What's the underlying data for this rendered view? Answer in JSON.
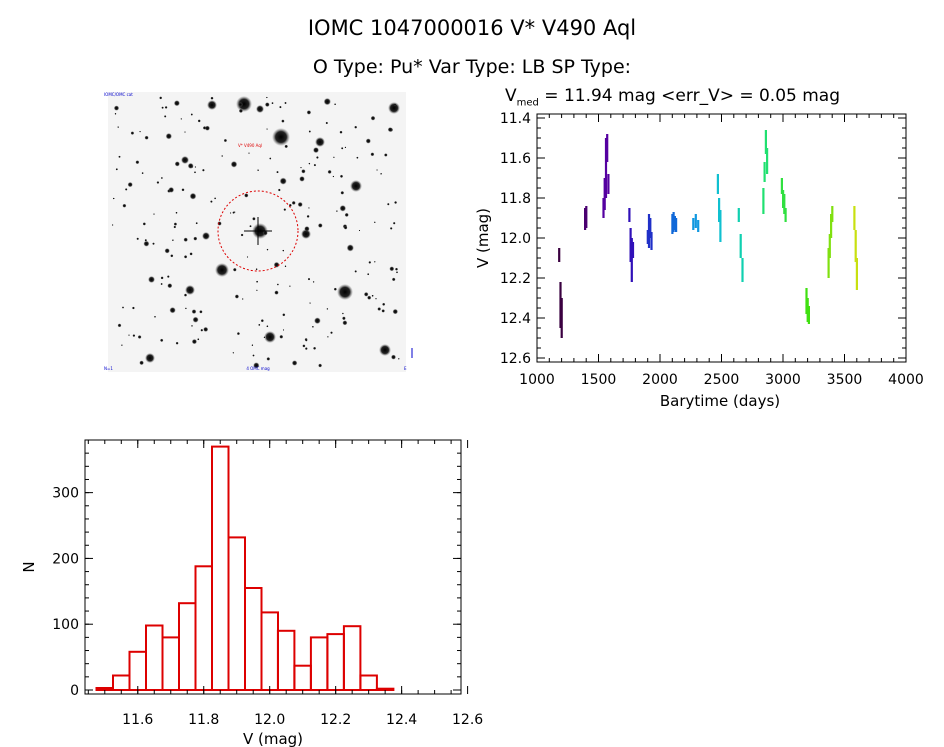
{
  "header": {
    "title": "IOMC 1047000016    V* V490 Aql",
    "subtitle": "O Type: Pu*  Var Type: LB  SP Type:"
  },
  "colors": {
    "histogram": "#dd0000",
    "circle": "#dd0000",
    "background": "#ffffff"
  },
  "finder": {
    "target_label": "V* V490 Aql",
    "corner_top_left": "IOMC/OMC cat",
    "corner_bottom_left": "N=1",
    "corner_bottom_center": "4 OMC mag",
    "corner_bottom_right": "E"
  },
  "lightcurve": {
    "vmed_prefix": "V",
    "vmed_sub": "med",
    "vmed_text": " = 11.94 mag <err_V> = 0.05 mag"
  },
  "chart_data": [
    {
      "type": "scatter",
      "xlabel": "Barytime (days)",
      "ylabel": "V (mag)",
      "xlim": [
        1000,
        4000
      ],
      "ylim": [
        12.62,
        11.38
      ],
      "y_inverted": true,
      "xticks": [
        1000,
        1500,
        2000,
        2500,
        3000,
        3500,
        4000
      ],
      "yticks": [
        11.4,
        11.6,
        11.8,
        12.0,
        12.2,
        12.4,
        12.6
      ],
      "ytick_labels": [
        "11.4",
        "11.6",
        "11.8",
        "12.0",
        "12.2",
        "12.4",
        "12.6"
      ],
      "series": [
        {
          "name": "s1",
          "color": "#3a0040",
          "x": [
            1180,
            1190,
            1200
          ],
          "ymin": [
            12.05,
            12.22,
            12.3
          ],
          "ymax": [
            12.12,
            12.45,
            12.5
          ]
        },
        {
          "name": "s2",
          "color": "#4a0070",
          "x": [
            1390,
            1400
          ],
          "ymin": [
            11.85,
            11.84
          ],
          "ymax": [
            11.96,
            11.95
          ]
        },
        {
          "name": "s3",
          "color": "#5500a0",
          "x": [
            1540,
            1550,
            1560,
            1570,
            1580
          ],
          "ymin": [
            11.8,
            11.7,
            11.5,
            11.48,
            11.68
          ],
          "ymax": [
            11.9,
            11.86,
            11.8,
            11.62,
            11.78
          ]
        },
        {
          "name": "s4",
          "color": "#3010b8",
          "x": [
            1750,
            1760,
            1770,
            1780
          ],
          "ymin": [
            11.85,
            11.95,
            12.0,
            12.02
          ],
          "ymax": [
            11.92,
            12.12,
            12.22,
            12.1
          ]
        },
        {
          "name": "s5",
          "color": "#2030c8",
          "x": [
            1900,
            1910,
            1920,
            1930
          ],
          "ymin": [
            11.96,
            11.88,
            11.9,
            11.97
          ],
          "ymax": [
            12.03,
            12.05,
            12.0,
            12.06
          ]
        },
        {
          "name": "s6",
          "color": "#1068d8",
          "x": [
            2100,
            2110,
            2120,
            2130
          ],
          "ymin": [
            11.88,
            11.87,
            11.89,
            11.9
          ],
          "ymax": [
            11.98,
            11.97,
            11.96,
            11.97
          ]
        },
        {
          "name": "s7",
          "color": "#1098e0",
          "x": [
            2270,
            2290,
            2310
          ],
          "ymin": [
            11.9,
            11.88,
            11.91
          ],
          "ymax": [
            11.96,
            11.95,
            11.97
          ]
        },
        {
          "name": "s8",
          "color": "#10c0d0",
          "x": [
            2470,
            2480,
            2490
          ],
          "ymin": [
            11.68,
            11.8,
            11.86
          ],
          "ymax": [
            11.78,
            11.92,
            12.02
          ]
        },
        {
          "name": "s9",
          "color": "#10d0b0",
          "x": [
            2640,
            2655,
            2670
          ],
          "ymin": [
            11.85,
            11.98,
            12.1
          ],
          "ymax": [
            11.92,
            12.1,
            12.22
          ]
        },
        {
          "name": "s10",
          "color": "#20e070",
          "x": [
            2840,
            2850,
            2860,
            2870
          ],
          "ymin": [
            11.75,
            11.62,
            11.46,
            11.55
          ],
          "ymax": [
            11.88,
            11.72,
            11.58,
            11.68
          ]
        },
        {
          "name": "s11",
          "color": "#30e040",
          "x": [
            2990,
            3000,
            3010,
            3020
          ],
          "ymin": [
            11.7,
            11.76,
            11.78,
            11.85
          ],
          "ymax": [
            11.78,
            11.85,
            11.88,
            11.92
          ]
        },
        {
          "name": "s12",
          "color": "#40e010",
          "x": [
            3190,
            3200,
            3210
          ],
          "ymin": [
            12.25,
            12.3,
            12.34
          ],
          "ymax": [
            12.38,
            12.42,
            12.43
          ]
        },
        {
          "name": "s13",
          "color": "#80e010",
          "x": [
            3370,
            3380,
            3390,
            3400
          ],
          "ymin": [
            12.05,
            11.98,
            11.88,
            11.84
          ],
          "ymax": [
            12.2,
            12.1,
            12.0,
            11.92
          ]
        },
        {
          "name": "s14",
          "color": "#c8e010",
          "x": [
            3580,
            3590,
            3600
          ],
          "ymin": [
            11.84,
            11.96,
            12.1
          ],
          "ymax": [
            11.96,
            12.12,
            12.26
          ]
        }
      ]
    },
    {
      "type": "bar",
      "style": "histogram",
      "xlabel": "V (mag)",
      "ylabel": "N",
      "xlim": [
        11.44,
        12.58
      ],
      "ylim": [
        0,
        380
      ],
      "xticks": [
        11.6,
        11.8,
        12.0,
        12.2,
        12.4,
        12.6
      ],
      "xtick_labels": [
        "11.6",
        "11.8",
        "12.0",
        "12.2",
        "12.4",
        "12.6"
      ],
      "yticks": [
        0,
        100,
        200,
        300
      ],
      "bin_width": 0.05,
      "bin_starts": [
        11.475,
        11.525,
        11.575,
        11.625,
        11.675,
        11.725,
        11.775,
        11.825,
        11.875,
        11.925,
        11.975,
        12.025,
        12.075,
        12.125,
        12.175,
        12.225,
        12.275,
        12.325,
        12.375,
        12.425,
        12.475
      ],
      "values": [
        3,
        22,
        58,
        98,
        80,
        132,
        188,
        370,
        232,
        155,
        118,
        90,
        37,
        80,
        85,
        97,
        22,
        2,
        0,
        0,
        0
      ]
    }
  ]
}
